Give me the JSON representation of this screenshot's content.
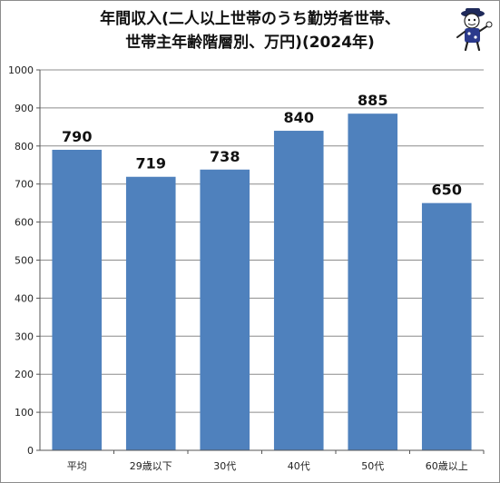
{
  "chart_data": {
    "type": "bar",
    "title_lines": [
      "年間収入(二人以上世帯のうち勤労者世帯、",
      "世帯主年齢階層別、万円)(2024年)"
    ],
    "categories": [
      "平均",
      "29歳以下",
      "30代",
      "40代",
      "50代",
      "60歳以上"
    ],
    "values": [
      790,
      719,
      738,
      840,
      885,
      650
    ],
    "ylim": [
      0,
      1000
    ],
    "yticks": [
      0,
      100,
      200,
      300,
      400,
      500,
      600,
      700,
      800,
      900,
      1000
    ],
    "grid": true,
    "legend": "none",
    "bar_color": "#4f81bd",
    "grid_color": "#8c8c8c"
  },
  "mascot_icon": "cartoon-mascot-icon"
}
